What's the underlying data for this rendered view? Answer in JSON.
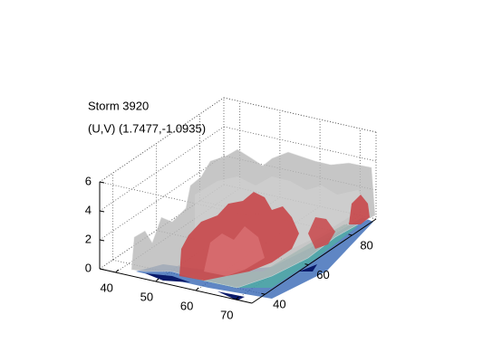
{
  "chart_data": {
    "type": "isosurface3d",
    "title": "Storm 3920",
    "subtitle": "(U,V) (1.7477,-1.0935)",
    "xlim": [
      36,
      74
    ],
    "xticks": [
      40,
      50,
      60,
      70
    ],
    "ylim": [
      34,
      91
    ],
    "yticks": [
      40,
      60,
      80
    ],
    "zlim": [
      0,
      6
    ],
    "zticks": [
      0,
      2,
      4,
      6
    ],
    "grid": true
  }
}
